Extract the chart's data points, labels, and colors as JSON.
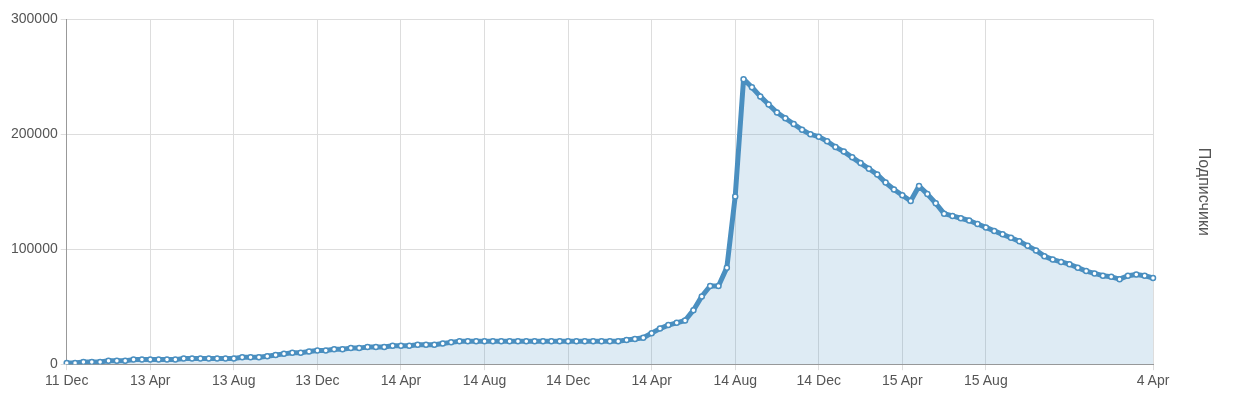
{
  "chart_data": {
    "type": "area",
    "ylabel": "Подписчики",
    "categories": [
      "11 Dec",
      null,
      null,
      null,
      null,
      null,
      null,
      null,
      null,
      null,
      "13 Apr",
      null,
      null,
      null,
      null,
      null,
      null,
      null,
      null,
      null,
      "13 Aug",
      null,
      null,
      null,
      null,
      null,
      null,
      null,
      null,
      null,
      "13 Dec",
      null,
      null,
      null,
      null,
      null,
      null,
      null,
      null,
      null,
      "14 Apr",
      null,
      null,
      null,
      null,
      null,
      null,
      null,
      null,
      null,
      "14 Aug",
      null,
      null,
      null,
      null,
      null,
      null,
      null,
      null,
      null,
      "14 Dec",
      null,
      null,
      null,
      null,
      null,
      null,
      null,
      null,
      null,
      "14 Apr",
      null,
      null,
      null,
      null,
      null,
      null,
      null,
      null,
      null,
      "14 Aug",
      null,
      null,
      null,
      null,
      null,
      null,
      null,
      null,
      null,
      "14 Dec",
      null,
      null,
      null,
      null,
      null,
      null,
      null,
      null,
      null,
      "15 Apr",
      null,
      null,
      null,
      null,
      null,
      null,
      null,
      null,
      null,
      "15 Aug",
      null,
      null,
      null,
      null,
      null,
      null,
      null,
      null,
      null,
      null,
      null,
      null,
      null,
      null,
      null,
      null,
      null,
      null,
      null,
      "4 Apr"
    ],
    "series": [
      {
        "color": "#4a8fc0",
        "values": [
          1000,
          1000,
          2000,
          2000,
          2000,
          3000,
          3000,
          3000,
          4000,
          4000,
          4000,
          4000,
          4000,
          4000,
          5000,
          5000,
          5000,
          5000,
          5000,
          5000,
          5000,
          6000,
          6000,
          6000,
          7000,
          8000,
          9000,
          10000,
          10000,
          11000,
          12000,
          12000,
          13000,
          13000,
          14000,
          14000,
          15000,
          15000,
          15000,
          16000,
          16000,
          16000,
          17000,
          17000,
          17000,
          18000,
          19000,
          20000,
          20000,
          20000,
          20000,
          20000,
          20000,
          20000,
          20000,
          20000,
          20000,
          20000,
          20000,
          20000,
          20000,
          20000,
          20000,
          20000,
          20000,
          20000,
          20000,
          21000,
          22000,
          23000,
          27000,
          31000,
          34000,
          36000,
          38000,
          47000,
          59000,
          68000,
          68000,
          84000,
          146000,
          248000,
          241000,
          233000,
          226000,
          219000,
          214000,
          209000,
          204000,
          200000,
          198000,
          194000,
          189000,
          185000,
          180000,
          175000,
          170000,
          165000,
          158000,
          152000,
          147000,
          142000,
          155000,
          148000,
          140000,
          131000,
          129000,
          127000,
          125000,
          122000,
          119000,
          116000,
          113000,
          110000,
          107000,
          103000,
          99000,
          94000,
          91000,
          89000,
          87000,
          84000,
          81000,
          79000,
          77000,
          76000,
          74000,
          77000,
          78000,
          77000,
          75000
        ]
      }
    ],
    "ylim": [
      0,
      300000
    ],
    "yticks": [
      0,
      100000,
      200000,
      300000
    ],
    "grid": true,
    "legend": false,
    "marker": "circle",
    "line_style": "solid"
  }
}
